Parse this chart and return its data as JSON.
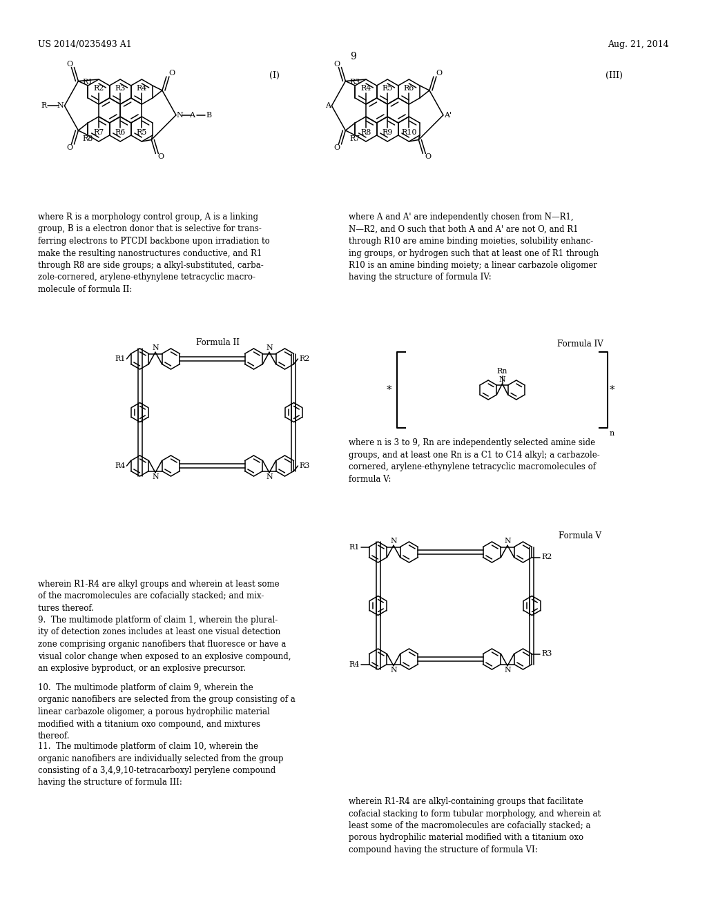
{
  "background_color": "#ffffff",
  "header_left": "US 2014/0235493 A1",
  "header_right": "Aug. 21, 2014",
  "page_number": "9",
  "text_left_1": "where R is a morphology control group, A is a linking\ngroup, B is a electron donor that is selective for trans-\nferring electrons to PTCDI backbone upon irradiation to\nmake the resulting nanostructures conductive, and R1\nthrough R8 are side groups; a alkyl-substituted, carba-\nzole-cornered, arylene-ethynylene tetracyclic macro-\nmolecule of formula II:",
  "text_right_1": "where A and A' are independently chosen from N—R1,\nN—R2, and O such that both A and A' are not O, and R1\nthrough R10 are amine binding moieties, solubility enhanc-\ning groups, or hydrogen such that at least one of R1 through\nR10 is an amine binding moiety; a linear carbazole oligomer\nhaving the structure of formula IV:",
  "text_right_2": "where n is 3 to 9, Rn are independently selected amine side\ngroups, and at least one Rn is a C1 to C14 alkyl; a carbazole-\ncornered, arylene-ethynylene tetracyclic macromolecules of\nformula V:",
  "text_left_2": "wherein R1-R4 are alkyl groups and wherein at least some\nof the macromolecules are cofacially stacked; and mix-\ntures thereof.",
  "claim_9": "9.  The multimode platform of claim 1, wherein the plural-\nity of detection zones includes at least one visual detection\nzone comprising organic nanofibers that fluoresce or have a\nvisual color change when exposed to an explosive compound,\nan explosive byproduct, or an explosive precursor.",
  "claim_10": "10.  The multimode platform of claim 9, wherein the\norganic nanofibers are selected from the group consisting of a\nlinear carbazole oligomer, a porous hydrophilic material\nmodified with a titanium oxo compound, and mixtures\nthereof.",
  "claim_11": "11.  The multimode platform of claim 10, wherein the\norganic nanofibers are individually selected from the group\nconsisting of a 3,4,9,10-tetracarboxyl perylene compound\nhaving the structure of formula III:",
  "text_right_3": "wherein R1-R4 are alkyl-containing groups that facilitate\ncofacial stacking to form tubular morphology, and wherein at\nleast some of the macromolecules are cofacially stacked; a\nporous hydrophilic material modified with a titanium oxo\ncompound having the structure of formula VI:"
}
